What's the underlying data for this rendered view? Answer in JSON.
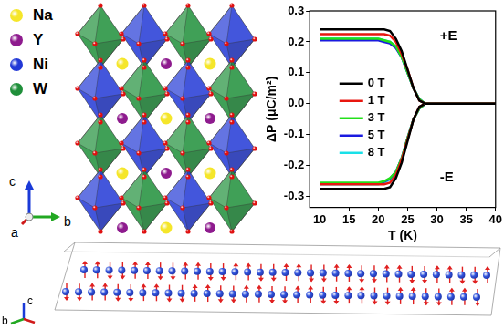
{
  "chart_data": {
    "type": "line",
    "x_label": "T (K)",
    "y_label": "ΔP (μC/m²)",
    "x": [
      10,
      12,
      14,
      16,
      18,
      20,
      21,
      22,
      23,
      24,
      25,
      26,
      27,
      28,
      30,
      32,
      34,
      36,
      38,
      40
    ],
    "series": [
      {
        "name": "0 T",
        "color": "#000000",
        "values": [
          0.24,
          0.24,
          0.24,
          0.24,
          0.24,
          0.24,
          0.24,
          0.235,
          0.21,
          0.17,
          0.11,
          0.05,
          0.01,
          0,
          0,
          0,
          0,
          0,
          0,
          0
        ]
      },
      {
        "name": "1 T",
        "color": "#e8170f",
        "values": [
          0.225,
          0.225,
          0.225,
          0.225,
          0.225,
          0.225,
          0.225,
          0.22,
          0.2,
          0.16,
          0.11,
          0.05,
          0.01,
          0,
          0,
          0,
          0,
          0,
          0,
          0
        ]
      },
      {
        "name": "3 T",
        "color": "#22e01a",
        "values": [
          0.21,
          0.21,
          0.21,
          0.21,
          0.21,
          0.21,
          0.205,
          0.2,
          0.185,
          0.15,
          0.1,
          0.05,
          0.015,
          0,
          0,
          0,
          0,
          0,
          0,
          0
        ]
      },
      {
        "name": "5 T",
        "color": "#1a1ae0",
        "values": [
          0.205,
          0.205,
          0.205,
          0.205,
          0.205,
          0.205,
          0.2,
          0.195,
          0.18,
          0.15,
          0.1,
          0.05,
          0.015,
          0,
          0,
          0,
          0,
          0,
          0,
          0
        ]
      },
      {
        "name": "8 T",
        "color": "#19e0e8",
        "values": [
          0.21,
          0.21,
          0.21,
          0.21,
          0.21,
          0.21,
          0.205,
          0.2,
          0.185,
          0.15,
          0.1,
          0.05,
          0.015,
          0,
          0,
          0,
          0,
          0,
          0,
          0
        ]
      },
      {
        "name": "0 T",
        "color": "#000000",
        "values": [
          -0.275,
          -0.275,
          -0.275,
          -0.275,
          -0.275,
          -0.275,
          -0.275,
          -0.27,
          -0.24,
          -0.19,
          -0.12,
          -0.05,
          -0.01,
          0,
          0,
          0,
          0,
          0,
          0,
          0
        ]
      },
      {
        "name": "1 T",
        "color": "#e8170f",
        "values": [
          -0.26,
          -0.26,
          -0.26,
          -0.26,
          -0.26,
          -0.26,
          -0.26,
          -0.255,
          -0.23,
          -0.18,
          -0.115,
          -0.05,
          -0.01,
          0,
          0,
          0,
          0,
          0,
          0,
          0
        ]
      },
      {
        "name": "3 T",
        "color": "#22e01a",
        "values": [
          -0.255,
          -0.255,
          -0.255,
          -0.255,
          -0.255,
          -0.255,
          -0.25,
          -0.24,
          -0.22,
          -0.175,
          -0.11,
          -0.05,
          -0.015,
          0,
          0,
          0,
          0,
          0,
          0,
          0
        ]
      },
      {
        "name": "5 T",
        "color": "#1a1ae0",
        "values": [
          -0.258,
          -0.258,
          -0.258,
          -0.258,
          -0.258,
          -0.258,
          -0.252,
          -0.242,
          -0.22,
          -0.175,
          -0.11,
          -0.05,
          -0.015,
          0,
          0,
          0,
          0,
          0,
          0,
          0
        ]
      },
      {
        "name": "8 T",
        "color": "#19e0e8",
        "values": [
          -0.26,
          -0.26,
          -0.26,
          -0.26,
          -0.26,
          -0.26,
          -0.255,
          -0.245,
          -0.222,
          -0.177,
          -0.112,
          -0.05,
          -0.015,
          0,
          0,
          0,
          0,
          0,
          0,
          0
        ]
      }
    ],
    "annotations": [
      "+E",
      "-E"
    ],
    "xlim": [
      8.3,
      40
    ],
    "xticks": [
      10,
      15,
      20,
      25,
      30,
      35,
      40
    ],
    "ylim": [
      -0.335,
      0.3
    ],
    "yticks": [
      -0.3,
      -0.2,
      -0.1,
      {
        "value": 0,
        "label": "0.0"
      },
      0.1,
      0.2,
      0.3
    ],
    "grid": false,
    "legend": "left"
  },
  "crystal_structure": {
    "legend": [
      {
        "label": "Na",
        "color": "#f5e62a"
      },
      {
        "label": "Y",
        "color": "#8e1b8e"
      },
      {
        "label": "Ni",
        "color": "#2238d6"
      },
      {
        "label": "W",
        "color": "#1f8f3a"
      }
    ],
    "axes": [
      "c",
      "a",
      "b"
    ]
  },
  "magnetic_structure": {
    "axes": [
      "c",
      "b"
    ]
  }
}
